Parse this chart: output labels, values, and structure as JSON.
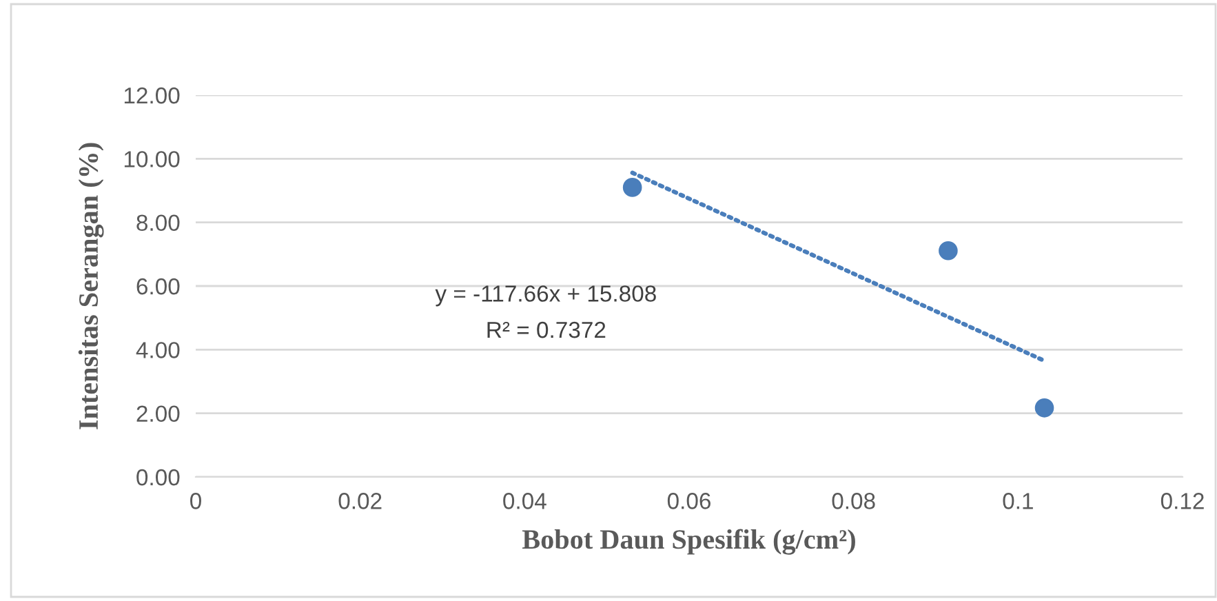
{
  "chart_data": {
    "type": "scatter",
    "xlabel": "Bobot Daun Spesifik (g/cm²)",
    "ylabel": "Intensitas Serangan (%)",
    "series": [
      {
        "color": "#4a7ebb",
        "x": [
          0.0531,
          0.0915,
          0.1032
        ],
        "values": [
          9.1,
          7.11,
          2.17
        ],
        "marker": "circle"
      },
      {
        "type": "line",
        "color": "#4a7ebb",
        "x": [
          0.0531,
          0.1032
        ],
        "values": [
          9.56,
          3.65
        ],
        "line_style": "dotted",
        "marker": "none"
      }
    ],
    "annotations": [
      "y = -117.66x + 15.808",
      "R² = 0.7372"
    ],
    "xlim": [
      0,
      0.12
    ],
    "xticks": [
      0,
      0.02,
      0.04,
      0.06,
      0.08,
      0.1,
      0.12
    ],
    "ylim": [
      0,
      12
    ],
    "yticks": [
      {
        "value": 0,
        "label": "0.00"
      },
      {
        "value": 2,
        "label": "2.00"
      },
      {
        "value": 4,
        "label": "4.00"
      },
      {
        "value": 6,
        "label": "6.00"
      },
      {
        "value": 8,
        "label": "8.00"
      },
      {
        "value": 10,
        "label": "10.00"
      },
      {
        "value": 12,
        "label": "12.00"
      }
    ],
    "grid": "y",
    "legend": false
  }
}
